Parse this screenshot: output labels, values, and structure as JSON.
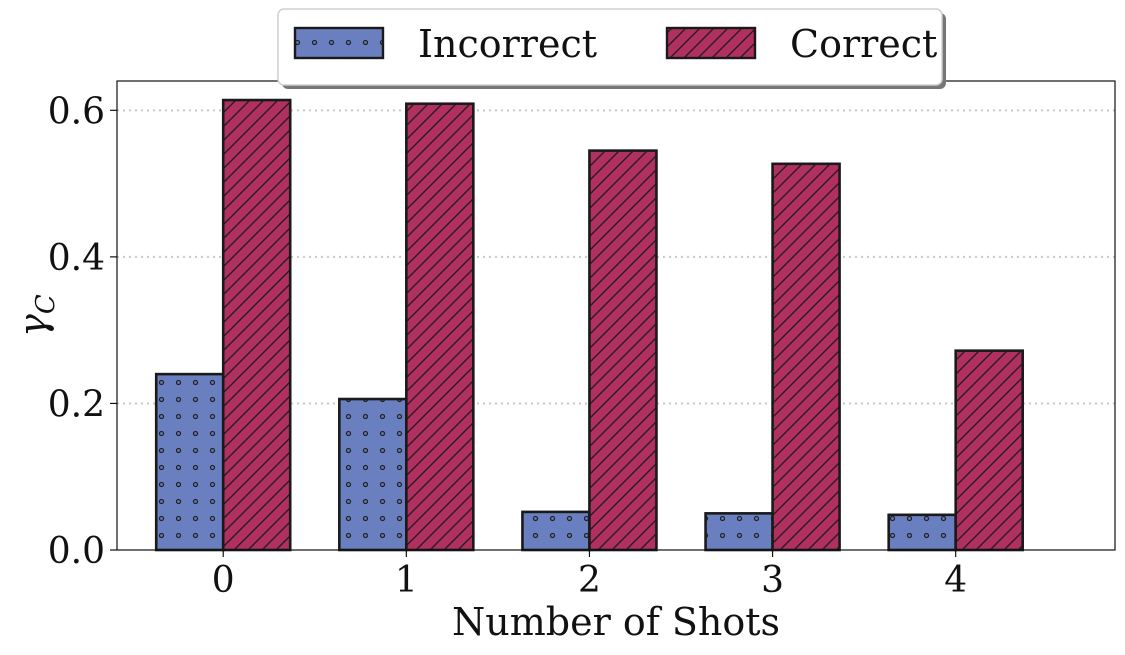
{
  "chart_data": {
    "type": "bar",
    "categories": [
      "0",
      "1",
      "2",
      "3",
      "4"
    ],
    "series": [
      {
        "name": "Incorrect",
        "values": [
          0.24,
          0.206,
          0.052,
          0.05,
          0.048
        ],
        "color": "#6a7fbf",
        "pattern": "dots"
      },
      {
        "name": "Correct",
        "values": [
          0.614,
          0.609,
          0.545,
          0.527,
          0.272
        ],
        "color": "#b0305f",
        "pattern": "diagonal-hatch"
      }
    ],
    "xlabel": "Number of Shots",
    "ylabel": "γ",
    "ylabel_subscript": "C",
    "ylim": [
      0,
      0.64
    ],
    "yticks": [
      0.0,
      0.2,
      0.4,
      0.6
    ],
    "ytick_labels": [
      "0.0",
      "0.2",
      "0.4",
      "0.6"
    ],
    "grid": "y-dotted",
    "legend_position": "top-center"
  }
}
